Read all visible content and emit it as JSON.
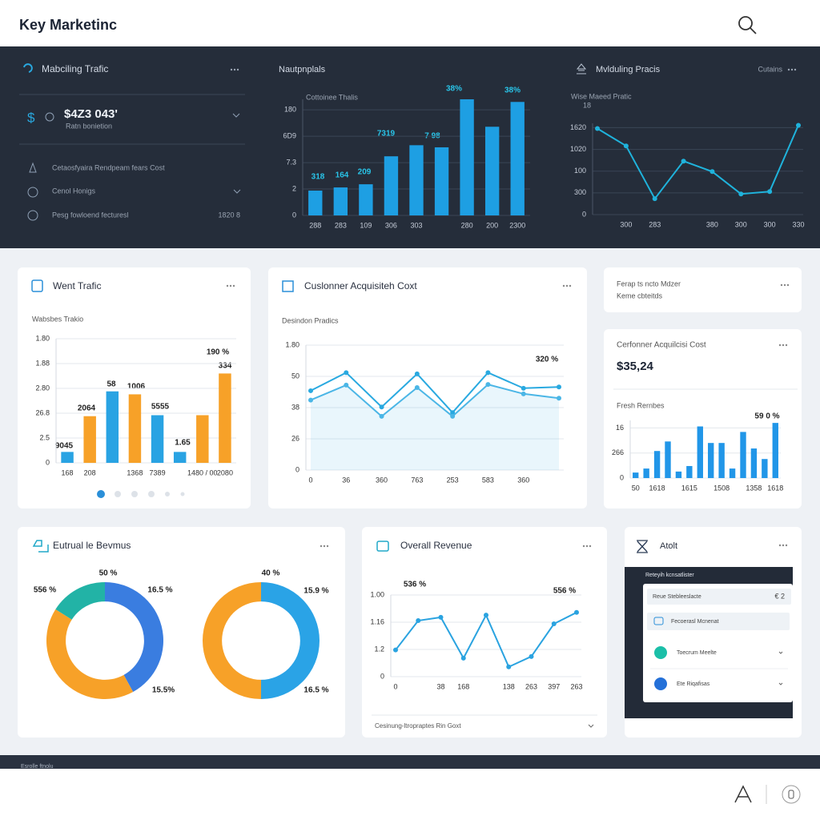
{
  "header": {
    "title": "Key Marketinc"
  },
  "overview": {
    "title": "Mabciling Trafic",
    "icon": "$",
    "value": "$4Z3 043'",
    "sublabel": "Ratn bonietion",
    "items": [
      "Cetaosfyaira Rendpeam fears Cost",
      "Cenol Honigs",
      "Pesg fowloend fecturesl"
    ],
    "item_value": "1820 8"
  },
  "notes": {
    "lines": [
      "Ferap ts ncto Mdzer",
      "Keme cbteitds"
    ]
  },
  "revenue_card": {
    "title": "Eutrual le Bevmus"
  },
  "alerts": {
    "title": "Atolt",
    "panel_title": "Reteyih kcnsatlister",
    "search": "Reue Stebleeslacte",
    "search_value": "€ 2",
    "items": [
      "Fecoerasl Mcnenat",
      "Toecrum Meelte",
      "Ete Riqafisas"
    ]
  },
  "footer_bar": "Esrolle ftnolu",
  "chart_data": [
    {
      "type": "bar",
      "title": "Nautpnplals",
      "subtitle": "Cottoinee Thalis",
      "categories": [
        "288",
        "283",
        "109",
        "306",
        "303",
        null,
        "280",
        "200",
        "2300"
      ],
      "values": [
        47,
        53,
        59,
        112,
        133,
        129,
        220,
        168,
        215
      ],
      "color": "#1e9fe3",
      "ylim": [
        0,
        220
      ],
      "yticks": [
        0,
        {
          "value": 50,
          "label": "2"
        },
        {
          "value": 100,
          "label": "7.3"
        },
        {
          "value": 150,
          "label": "6D9"
        },
        {
          "value": 200,
          "label": "180"
        }
      ],
      "grid": true,
      "annotations": [
        "318",
        "164",
        "209",
        "7319",
        "7 98",
        "38%",
        "38%"
      ]
    },
    {
      "type": "line",
      "title": "Mvlduling Pracis",
      "menu": "Cutains",
      "subtitle": "Wise Maeed Pratic",
      "ylabel": "18",
      "categories": [
        null,
        "300",
        "283",
        null,
        "380",
        "300",
        "300",
        "330"
      ],
      "values": [
        396,
        316,
        73,
        246,
        198,
        95,
        106,
        411
      ],
      "color": "#1fb3dc",
      "ylim": [
        0,
        420
      ],
      "yticks": [
        0,
        {
          "value": 100,
          "label": "300"
        },
        {
          "value": 200,
          "label": "100"
        },
        {
          "value": 300,
          "label": "1020"
        },
        {
          "value": 400,
          "label": "1620"
        }
      ],
      "grid": true,
      "markers": true
    },
    {
      "type": "bar",
      "title": "Went Trafic",
      "subtitle": "Wabsbes Trakio",
      "categories": [
        "168",
        "208",
        null,
        "1368",
        "7389",
        null,
        "1480 / 00",
        "2080"
      ],
      "values": [
        11,
        47,
        72,
        69,
        48,
        11,
        48,
        90
      ],
      "colors": [
        "#29a3e3",
        "#f7a128",
        "#29a3e3",
        "#f7a128",
        "#29a3e3",
        "#29a3e3",
        "#f7a128",
        "#f7a128"
      ],
      "ylim": [
        0,
        125
      ],
      "yticks": [
        0,
        {
          "value": 25,
          "label": "2.5"
        },
        {
          "value": 50,
          "label": "26.8"
        },
        {
          "value": 75,
          "label": "2.80"
        },
        {
          "value": 100,
          "label": "1.88"
        },
        {
          "value": 125,
          "label": "1.80"
        }
      ],
      "grid": true,
      "annotations": [
        "9045",
        "2064",
        "58",
        "1006",
        "5555",
        "1.65",
        "190 %",
        "334"
      ]
    },
    {
      "type": "line",
      "title": "Cuslonner Acquisiteh Coxt",
      "subtitle": "Desindon Pradics",
      "categories": [
        "0",
        "36",
        "360",
        "763",
        "253",
        "583",
        "360",
        null
      ],
      "series": [
        {
          "color": "#29a9e0",
          "values": [
            127,
            156,
            101,
            154,
            92,
            156,
            131,
            133
          ]
        },
        {
          "color": "#4bb6e6",
          "values": [
            112,
            136,
            86,
            132,
            86,
            137,
            122,
            115
          ],
          "area": true
        }
      ],
      "ylim": [
        0,
        200
      ],
      "yticks": [
        0,
        {
          "value": 50,
          "label": "26"
        },
        {
          "value": 100,
          "label": "38"
        },
        {
          "value": 150,
          "label": "50"
        },
        {
          "value": 200,
          "label": "1.80"
        }
      ],
      "grid": true,
      "markers": true,
      "annotations": [
        "320 %"
      ]
    },
    {
      "type": "bar",
      "title": "Cerfonner Acquilcisi Cost",
      "kpi": "$35,24",
      "subtitle": "Fresh Rernbes",
      "categories": [
        "50",
        null,
        "1618",
        null,
        null,
        "1615",
        null,
        null,
        "1508",
        null,
        null,
        "1358",
        null,
        "1618"
      ],
      "values": [
        11,
        19,
        54,
        73,
        13,
        24,
        103,
        70,
        70,
        19,
        92,
        59,
        38,
        110
      ],
      "color": "#2196e8",
      "ylim": [
        0,
        115
      ],
      "yticks": [
        0,
        {
          "value": 50,
          "label": "266"
        },
        {
          "value": 100,
          "label": "16"
        }
      ],
      "grid": true,
      "annotations": [
        "59 0 %"
      ]
    },
    {
      "type": "pie",
      "hole": 0.67,
      "values": [
        42,
        42,
        16
      ],
      "colors": [
        "#3a7de0",
        "#f7a128",
        "#22b3a6"
      ],
      "annotations": [
        "50 %",
        "16.5 %",
        "15.5%",
        "556 %"
      ]
    },
    {
      "type": "pie",
      "hole": 0.67,
      "values": [
        50,
        50
      ],
      "colors": [
        "#2aa3e6",
        "#f7a128"
      ],
      "annotations": [
        "40 %",
        "15.9 %",
        "16.5 %"
      ]
    },
    {
      "type": "line",
      "title": "Overall Revenue",
      "footer": "Cesinung-ltropraptes Rin Goxt",
      "categories": [
        "0",
        null,
        "38",
        "168",
        null,
        "138",
        "263",
        "397",
        "263"
      ],
      "values": [
        49,
        103,
        109,
        34,
        113,
        18,
        37,
        97,
        118
      ],
      "color": "#2aa3e0",
      "ylim": [
        0,
        150
      ],
      "yticks": [
        0,
        {
          "value": 50,
          "label": "1.2"
        },
        {
          "value": 100,
          "label": "1.16"
        },
        {
          "value": 150,
          "label": "1.00"
        }
      ],
      "grid": true,
      "markers": true,
      "annotations": [
        "536 %",
        "556 %"
      ]
    }
  ]
}
